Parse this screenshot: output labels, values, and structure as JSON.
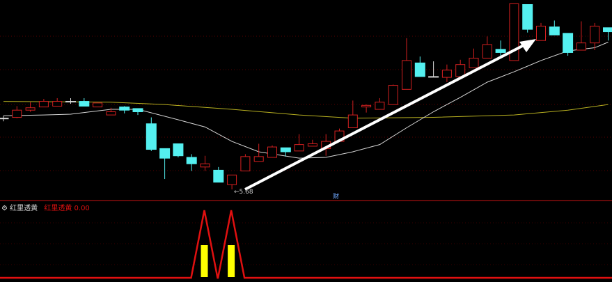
{
  "colors": {
    "up": "#d42020",
    "down": "#54f0f0",
    "doji": "#d8d8d8",
    "ma_short": "#d8d8d8",
    "ma_long": "#b8b020",
    "grid": "#5a0000",
    "indicator_line": "#e01010",
    "indicator_bar": "#ffff00",
    "arrow": "#ffffff"
  },
  "chart_data": {
    "type": "candlestick",
    "candles": [
      [
        6.57,
        6.6,
        6.53,
        6.57
      ],
      [
        6.58,
        6.72,
        6.57,
        6.67
      ],
      [
        6.67,
        6.77,
        6.65,
        6.7
      ],
      [
        6.71,
        6.81,
        6.71,
        6.78
      ],
      [
        6.72,
        6.82,
        6.72,
        6.78
      ],
      [
        6.78,
        6.82,
        6.75,
        6.78
      ],
      [
        6.78,
        6.82,
        6.72,
        6.72
      ],
      [
        6.71,
        6.76,
        6.71,
        6.76
      ],
      [
        6.61,
        6.7,
        6.61,
        6.65
      ],
      [
        6.71,
        6.72,
        6.63,
        6.67
      ],
      [
        6.69,
        6.69,
        6.61,
        6.65
      ],
      [
        6.5,
        6.58,
        6.16,
        6.18
      ],
      [
        6.19,
        6.19,
        5.81,
        6.07
      ],
      [
        6.25,
        6.25,
        6.08,
        6.1
      ],
      [
        6.08,
        6.12,
        5.91,
        6.0
      ],
      [
        5.96,
        6.1,
        5.91,
        6.0
      ],
      [
        5.92,
        5.96,
        5.77,
        5.77
      ],
      [
        5.74,
        5.86,
        5.68,
        5.86
      ],
      [
        5.91,
        6.12,
        5.91,
        6.09
      ],
      [
        6.03,
        6.25,
        6.03,
        6.09
      ],
      [
        6.08,
        6.23,
        6.08,
        6.21
      ],
      [
        6.2,
        6.2,
        6.09,
        6.15
      ],
      [
        6.16,
        6.37,
        6.16,
        6.24
      ],
      [
        6.22,
        6.3,
        6.22,
        6.25
      ],
      [
        6.19,
        6.37,
        6.1,
        6.28
      ],
      [
        6.28,
        6.44,
        6.28,
        6.41
      ],
      [
        6.45,
        6.79,
        6.45,
        6.61
      ],
      [
        6.71,
        6.74,
        6.64,
        6.73
      ],
      [
        6.68,
        6.82,
        6.68,
        6.77
      ],
      [
        6.74,
        6.99,
        6.74,
        6.98
      ],
      [
        6.93,
        7.57,
        6.93,
        7.29
      ],
      [
        7.26,
        7.34,
        7.09,
        7.09
      ],
      [
        7.09,
        7.28,
        7.09,
        7.09
      ],
      [
        7.08,
        7.24,
        7.02,
        7.17
      ],
      [
        7.09,
        7.3,
        7.09,
        7.24
      ],
      [
        7.2,
        7.44,
        7.2,
        7.32
      ],
      [
        7.32,
        7.59,
        7.32,
        7.49
      ],
      [
        7.43,
        7.54,
        7.35,
        7.39
      ],
      [
        7.29,
        8.0,
        7.29,
        8.0
      ],
      [
        7.99,
        7.99,
        7.64,
        7.68
      ],
      [
        7.54,
        7.76,
        7.54,
        7.72
      ],
      [
        7.71,
        7.79,
        7.61,
        7.61
      ],
      [
        7.63,
        7.63,
        7.35,
        7.39
      ],
      [
        7.42,
        7.78,
        7.42,
        7.51
      ],
      [
        7.51,
        7.76,
        7.42,
        7.72
      ],
      [
        7.7,
        7.7,
        7.54,
        7.65
      ]
    ],
    "candle_fields": [
      "open",
      "high",
      "low",
      "close"
    ],
    "ma_short": [
      [
        0,
        6.6
      ],
      [
        3,
        6.61
      ],
      [
        5,
        6.62
      ],
      [
        8,
        6.68
      ],
      [
        10,
        6.68
      ],
      [
        13,
        6.55
      ],
      [
        15,
        6.46
      ],
      [
        17,
        6.28
      ],
      [
        19,
        6.15
      ],
      [
        22,
        6.07
      ],
      [
        24,
        6.08
      ],
      [
        26,
        6.15
      ],
      [
        28,
        6.24
      ],
      [
        30,
        6.45
      ],
      [
        32,
        6.65
      ],
      [
        34,
        6.83
      ],
      [
        36,
        7.02
      ],
      [
        38,
        7.15
      ],
      [
        40,
        7.29
      ],
      [
        42,
        7.41
      ],
      [
        44,
        7.45
      ],
      [
        45,
        7.52
      ]
    ],
    "ma_long": [
      [
        0,
        6.78
      ],
      [
        8,
        6.77
      ],
      [
        12,
        6.74
      ],
      [
        17,
        6.68
      ],
      [
        22,
        6.61
      ],
      [
        26,
        6.57
      ],
      [
        32,
        6.58
      ],
      [
        38,
        6.61
      ],
      [
        42,
        6.67
      ],
      [
        45,
        6.74
      ]
    ],
    "low_marker": "5.68",
    "low_marker_index": 17,
    "finance_marker": "财",
    "finance_marker_index": 25
  },
  "indicator": {
    "name": "红里透黄",
    "value_label": "红里透黄",
    "value": "0.00",
    "signal_indices": [
      15,
      17
    ]
  }
}
